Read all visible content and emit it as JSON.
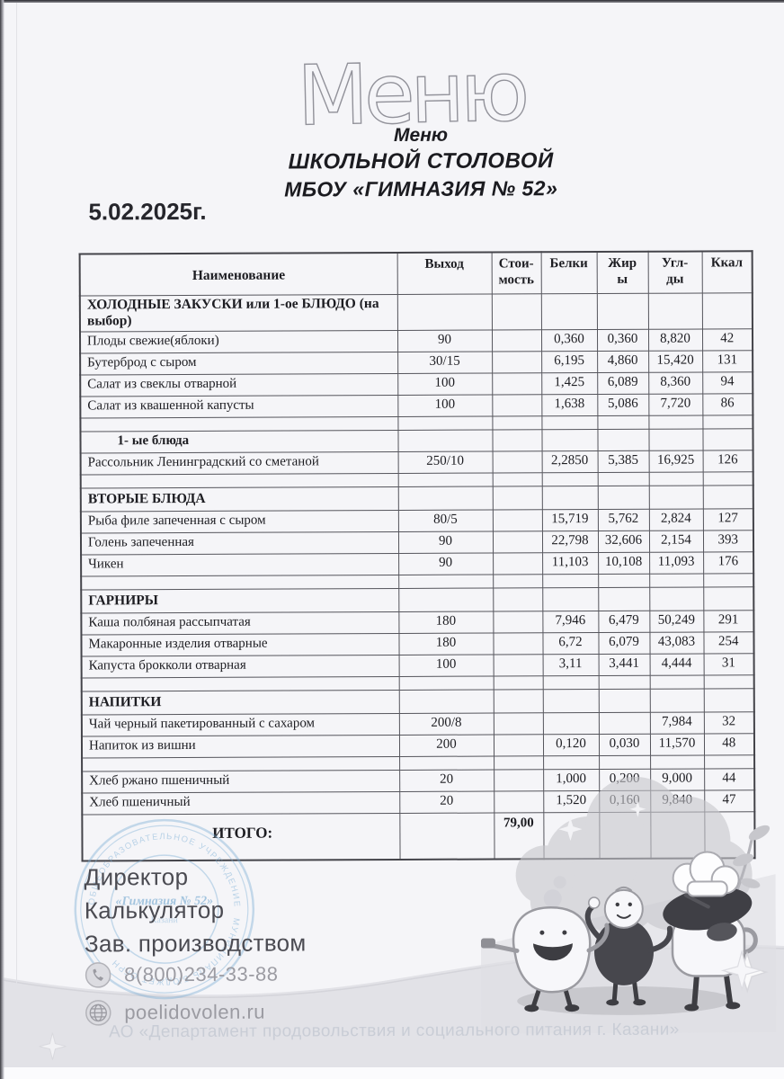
{
  "header": {
    "logo": "Меню",
    "subtitle_lines": [
      "Меню",
      "ШКОЛЬНОЙ СТОЛОВОЙ",
      "МБОУ «ГИМНАЗИЯ № 52»"
    ],
    "date": "5.02.2025г."
  },
  "table": {
    "headers": [
      "Наименование",
      "Выход",
      "Стои-\nмость",
      "Белки",
      "Жир\nы",
      "Угл-\nды",
      "Ккал"
    ],
    "rows": [
      {
        "type": "section",
        "name": "ХОЛОДНЫЕ ЗАКУСКИ или 1-ое БЛЮДО (на выбор)"
      },
      {
        "type": "item",
        "name": "Плоды свежие(яблоки)",
        "output": "90",
        "cost": "",
        "protein": "0,360",
        "fat": "0,360",
        "carbs": "8,820",
        "kcal": "42"
      },
      {
        "type": "item",
        "name": "Бутерброд с сыром",
        "output": "30/15",
        "cost": "",
        "protein": "6,195",
        "fat": "4,860",
        "carbs": "15,420",
        "kcal": "131"
      },
      {
        "type": "item",
        "name": "Салат из свеклы отварной",
        "output": "100",
        "cost": "",
        "protein": "1,425",
        "fat": "6,089",
        "carbs": "8,360",
        "kcal": "94"
      },
      {
        "type": "item",
        "name": "Салат из квашенной капусты",
        "output": "100",
        "cost": "",
        "protein": "1,638",
        "fat": "5,086",
        "carbs": "7,720",
        "kcal": "86"
      },
      {
        "type": "empty"
      },
      {
        "type": "section-indent",
        "name": "1-  ые блюда"
      },
      {
        "type": "item",
        "name": "Рассольник Ленинградский со сметаной",
        "output": "250/10",
        "cost": "",
        "protein": "2,2850",
        "fat": "5,385",
        "carbs": "16,925",
        "kcal": "126"
      },
      {
        "type": "empty"
      },
      {
        "type": "section",
        "name": "ВТОРЫЕ БЛЮДА"
      },
      {
        "type": "item",
        "name": "Рыба филе запеченная с сыром",
        "output": "80/5",
        "cost": "",
        "protein": "15,719",
        "fat": "5,762",
        "carbs": "2,824",
        "kcal": "127"
      },
      {
        "type": "item",
        "name": "Голень запеченная",
        "output": "90",
        "cost": "",
        "protein": "22,798",
        "fat": "32,606",
        "carbs": "2,154",
        "kcal": "393"
      },
      {
        "type": "item",
        "name": "Чикен",
        "output": "90",
        "cost": "",
        "protein": "11,103",
        "fat": "10,108",
        "carbs": "11,093",
        "kcal": "176"
      },
      {
        "type": "empty"
      },
      {
        "type": "section",
        "name": "ГАРНИРЫ"
      },
      {
        "type": "item",
        "name": "Каша полбяная рассыпчатая",
        "output": "180",
        "cost": "",
        "protein": "7,946",
        "fat": "6,479",
        "carbs": "50,249",
        "kcal": "291"
      },
      {
        "type": "item",
        "name": "Макаронные изделия отварные",
        "output": "180",
        "cost": "",
        "protein": "6,72",
        "fat": "6,079",
        "carbs": "43,083",
        "kcal": "254"
      },
      {
        "type": "item",
        "name": "Капуста брокколи отварная",
        "output": "100",
        "cost": "",
        "protein": "3,11",
        "fat": "3,441",
        "carbs": "4,444",
        "kcal": "31"
      },
      {
        "type": "empty"
      },
      {
        "type": "section",
        "name": "НАПИТКИ"
      },
      {
        "type": "item",
        "name": "Чай черный пакетированный с сахаром",
        "output": "200/8",
        "cost": "",
        "protein": "",
        "fat": "",
        "carbs": "7,984",
        "kcal": "32"
      },
      {
        "type": "item",
        "name": "Напиток из вишни",
        "output": "200",
        "cost": "",
        "protein": "0,120",
        "fat": "0,030",
        "carbs": "11,570",
        "kcal": "48"
      },
      {
        "type": "empty"
      },
      {
        "type": "item",
        "name": "Хлеб ржано пшеничный",
        "output": "20",
        "cost": "",
        "protein": "1,000",
        "fat": "0,200",
        "carbs": "9,000",
        "kcal": "44"
      },
      {
        "type": "item",
        "name": "Хлеб пшеничный",
        "output": "20",
        "cost": "",
        "protein": "1,520",
        "fat": "0,160",
        "carbs": "9,840",
        "kcal": "47"
      },
      {
        "type": "total",
        "name": "ИТОГО:",
        "output": "",
        "cost": "79,00",
        "protein": "",
        "fat": "",
        "carbs": "",
        "kcal": ""
      }
    ]
  },
  "signatures": {
    "labels": [
      "Директор",
      "Калькулятор",
      "Зав. производством"
    ]
  },
  "contacts": {
    "phone": "8(800)234-33-88",
    "website": "poelidovolen.ru"
  },
  "stamp": {
    "center_text": "«Гимназия № 52»",
    "center_sub": "Казани",
    "ring_text_fragments": [
      "ОБЩЕОБРАЗОВАТЕЛЬНОЕ УЧРЕЖДЕНИЕ",
      "МУНИЦИПАЛЬ БЮДЖЕТ ОГРН"
    ]
  },
  "footer": {
    "company": "АО «Департамент продовольствия и социального питания г. Казани»"
  },
  "colors": {
    "paper": "#f5f5f8",
    "ink": "#1d1d22",
    "stamp_blue": "#7fb0d6",
    "band_gray": "#e2e2e7",
    "footer_text": "#c9cdd6"
  }
}
